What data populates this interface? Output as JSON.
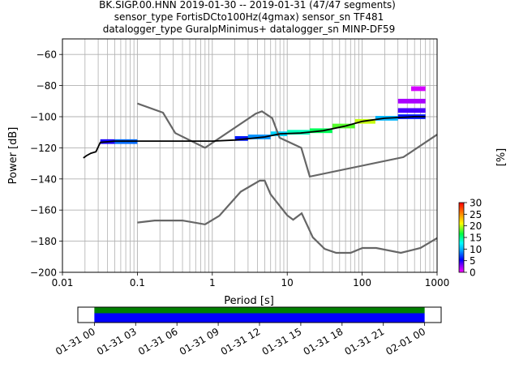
{
  "title_lines": [
    "BK.SIGP.00.HNN   2019-01-30 -- 2019-01-31  (47/47 segments)",
    "sensor_type FortisDCto100Hz(4gmax) sensor_sn TF481",
    "datalogger_type GuralpMinimus+ datalogger_sn MINP-DF59"
  ],
  "chart_data": [
    {
      "type": "heatmap",
      "xlabel": "Period [s]",
      "ylabel": "Power [dB]",
      "x_scale": "log",
      "xlim": [
        0.01,
        1000
      ],
      "ylim": [
        -200,
        -50
      ],
      "x_ticks": [
        0.01,
        0.1,
        1,
        10,
        100,
        1000
      ],
      "x_tick_labels": [
        "0.01",
        "0.1",
        "1",
        "10",
        "100",
        "1000"
      ],
      "y_ticks": [
        -200,
        -180,
        -160,
        -140,
        -120,
        -100,
        -80,
        -60
      ],
      "y_tick_labels": [
        "−200",
        "−180",
        "−160",
        "−140",
        "−120",
        "−100",
        "−80",
        "−60"
      ],
      "grid": true,
      "mode_line": [
        [
          0.019,
          -126.5
        ],
        [
          0.021,
          -125
        ],
        [
          0.024,
          -123.5
        ],
        [
          0.028,
          -122.5
        ],
        [
          0.032,
          -116.5
        ],
        [
          0.05,
          -115.7
        ],
        [
          0.1,
          -115.7
        ],
        [
          0.3,
          -115.7
        ],
        [
          1.0,
          -115.7
        ],
        [
          2.0,
          -115
        ],
        [
          5.0,
          -113
        ],
        [
          8.0,
          -111
        ],
        [
          15,
          -110.5
        ],
        [
          30,
          -109
        ],
        [
          60,
          -106
        ],
        [
          100,
          -103
        ],
        [
          200,
          -101
        ],
        [
          500,
          -100
        ],
        [
          700,
          -100
        ]
      ],
      "noise_models": {
        "upper": [
          [
            0.1,
            -91.5
          ],
          [
            0.22,
            -97.4
          ],
          [
            0.32,
            -110.5
          ],
          [
            0.8,
            -120
          ],
          [
            3.8,
            -98
          ],
          [
            4.6,
            -96.5
          ],
          [
            6.3,
            -101
          ],
          [
            7.9,
            -113.5
          ],
          [
            15.4,
            -120
          ],
          [
            20,
            -138.5
          ],
          [
            354.8,
            -126
          ],
          [
            1000,
            -111.5
          ]
        ],
        "lower": [
          [
            0.1,
            -168
          ],
          [
            0.17,
            -166.7
          ],
          [
            0.4,
            -166.7
          ],
          [
            0.8,
            -169.2
          ],
          [
            1.24,
            -163.7
          ],
          [
            2.4,
            -148.2
          ],
          [
            4.3,
            -141.1
          ],
          [
            5.0,
            -141.1
          ],
          [
            6.0,
            -149.9
          ],
          [
            10,
            -163.4
          ],
          [
            12,
            -166.2
          ],
          [
            15.6,
            -162.1
          ],
          [
            21.9,
            -177.5
          ],
          [
            31.6,
            -185
          ],
          [
            45,
            -187.5
          ],
          [
            70,
            -187.5
          ],
          [
            101,
            -184.4
          ],
          [
            154,
            -184.4
          ],
          [
            328,
            -187.5
          ],
          [
            600,
            -184.4
          ],
          [
            1000,
            -178
          ]
        ]
      },
      "ppsd_cells": [
        {
          "x": [
            0.032,
            0.05
          ],
          "y": -116,
          "pct": 5
        },
        {
          "x": [
            0.05,
            0.1
          ],
          "y": -116,
          "pct": 8
        },
        {
          "x": [
            2.0,
            3.0
          ],
          "y": -114,
          "pct": 6
        },
        {
          "x": [
            3.0,
            6.0
          ],
          "y": -113,
          "pct": 9
        },
        {
          "x": [
            6.0,
            10
          ],
          "y": -111,
          "pct": 11
        },
        {
          "x": [
            10,
            20
          ],
          "y": -110,
          "pct": 14
        },
        {
          "x": [
            20,
            40
          ],
          "y": -109,
          "pct": 16
        },
        {
          "x": [
            40,
            80
          ],
          "y": -106,
          "pct": 18
        },
        {
          "x": [
            80,
            150
          ],
          "y": -103,
          "pct": 20
        },
        {
          "x": [
            150,
            300
          ],
          "y": -101,
          "pct": 10
        },
        {
          "x": [
            300,
            700
          ],
          "y": -100,
          "pct": 6
        },
        {
          "x": [
            300,
            700
          ],
          "y": -96,
          "pct": 4
        },
        {
          "x": [
            300,
            700
          ],
          "y": -90,
          "pct": 2
        },
        {
          "x": [
            450,
            700
          ],
          "y": -82,
          "pct": 1
        }
      ],
      "colorbar": {
        "label": "[%]",
        "ticks": [
          0,
          5,
          10,
          15,
          20,
          25,
          30
        ],
        "tick_labels": [
          "0",
          "5",
          "10",
          "15",
          "20",
          "25",
          "30"
        ],
        "range": [
          0,
          30
        ]
      }
    },
    {
      "type": "timeline",
      "x_tick_labels": [
        "01-31 00",
        "01-31 03",
        "01-31 06",
        "01-31 09",
        "01-31 12",
        "01-31 15",
        "01-31 18",
        "01-31 21",
        "02-01 00"
      ],
      "x_ticks_hours": [
        0,
        3,
        6,
        9,
        12,
        15,
        18,
        21,
        24
      ],
      "xlim_hours": [
        -1.2,
        25.2
      ],
      "coverage_hours": [
        0,
        24
      ],
      "colors": {
        "top": "#008000",
        "bottom": "#0000ff"
      }
    }
  ]
}
